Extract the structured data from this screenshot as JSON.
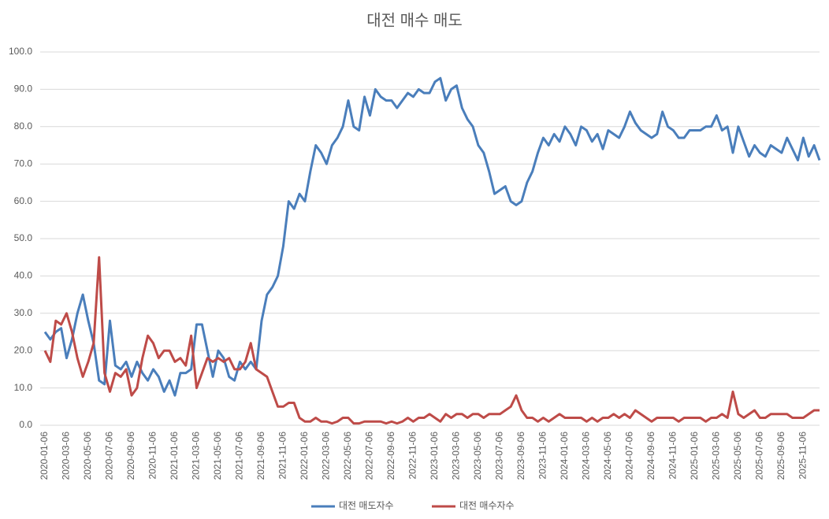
{
  "chart_data": {
    "type": "line",
    "title": "대전 매수 매도",
    "categories": [
      "2020-01-06",
      null,
      null,
      null,
      "2020-03-06",
      null,
      null,
      null,
      "2020-05-06",
      null,
      null,
      null,
      "2020-07-06",
      null,
      null,
      null,
      "2020-09-06",
      null,
      null,
      null,
      "2020-11-06",
      null,
      null,
      null,
      "2021-01-06",
      null,
      null,
      null,
      "2021-03-06",
      null,
      null,
      null,
      "2021-05-06",
      null,
      null,
      null,
      "2021-07-06",
      null,
      null,
      null,
      "2021-09-06",
      null,
      null,
      null,
      "2021-11-06",
      null,
      null,
      null,
      "2022-01-06",
      null,
      null,
      null,
      "2022-03-06",
      null,
      null,
      null,
      "2022-05-06",
      null,
      null,
      null,
      "2022-07-06",
      null,
      null,
      null,
      "2022-09-06",
      null,
      null,
      null,
      "2022-11-06",
      null,
      null,
      null,
      "2023-01-06",
      null,
      null,
      null,
      "2023-03-06",
      null,
      null,
      null,
      "2023-05-06",
      null,
      null,
      null,
      "2023-07-06",
      null,
      null,
      null,
      "2023-09-06",
      null,
      null,
      null,
      "2023-11-06",
      null,
      null,
      null,
      "2024-01-06",
      null,
      null,
      null,
      "2024-03-06",
      null,
      null,
      null,
      "2024-05-06",
      null,
      null,
      null,
      "2024-07-06",
      null,
      null,
      null,
      "2024-09-06",
      null,
      null,
      null,
      "2024-11-06",
      null,
      null,
      null,
      "2025-01-06",
      null,
      null,
      null,
      "2025-03-06",
      null,
      null,
      null,
      "2025-05-06",
      null,
      null,
      null,
      "2025-07-06",
      null,
      null,
      null,
      "2025-09-06",
      null,
      null,
      null,
      "2025-11-06",
      null,
      null,
      null
    ],
    "series": [
      {
        "name": "대전 매도자수",
        "color": "#4a7ebb",
        "values": [
          25,
          23,
          25,
          26,
          18,
          23,
          30,
          35,
          28,
          22,
          12,
          11,
          28,
          16,
          15,
          17,
          13,
          17,
          14,
          12,
          15,
          13,
          9,
          12,
          8,
          14,
          14,
          15,
          27,
          27,
          20,
          13,
          20,
          18,
          13,
          12,
          17,
          15,
          17,
          15,
          28,
          35,
          37,
          40,
          48,
          60,
          58,
          62,
          60,
          68,
          75,
          73,
          70,
          75,
          77,
          80,
          87,
          80,
          79,
          88,
          83,
          90,
          88,
          87,
          87,
          85,
          87,
          89,
          88,
          90,
          89,
          89,
          92,
          93,
          87,
          90,
          91,
          85,
          82,
          80,
          75,
          73,
          68,
          62,
          63,
          64,
          60,
          59,
          60,
          65,
          68,
          73,
          77,
          75,
          78,
          76,
          80,
          78,
          75,
          80,
          79,
          76,
          78,
          74,
          79,
          78,
          77,
          80,
          84,
          81,
          79,
          78,
          77,
          78,
          84,
          80,
          79,
          77,
          77,
          79,
          79,
          79,
          80,
          80,
          83,
          79,
          80,
          73,
          80,
          76,
          72,
          75,
          73,
          72,
          75,
          74,
          73,
          77,
          74,
          71,
          77,
          72,
          75,
          71
        ]
      },
      {
        "name": "대전 매수자수",
        "color": "#be4b48",
        "values": [
          20,
          17,
          28,
          27,
          30,
          25,
          18,
          13,
          17,
          22,
          45,
          14,
          9,
          14,
          13,
          15,
          8,
          10,
          18,
          24,
          22,
          18,
          20,
          20,
          17,
          18,
          16,
          24,
          10,
          14,
          18,
          17,
          18,
          17,
          18,
          15,
          15,
          17,
          22,
          15,
          14,
          13,
          9,
          5,
          5,
          6,
          6,
          2,
          1,
          1,
          2,
          1,
          1,
          0.5,
          1,
          2,
          2,
          0.5,
          0.5,
          1,
          1,
          1,
          1,
          0.5,
          1,
          0.5,
          1,
          2,
          1,
          2,
          2,
          3,
          2,
          1,
          3,
          2,
          3,
          3,
          2,
          3,
          3,
          2,
          3,
          3,
          3,
          4,
          5,
          8,
          4,
          2,
          2,
          1,
          2,
          1,
          2,
          3,
          2,
          2,
          2,
          2,
          1,
          2,
          1,
          2,
          2,
          3,
          2,
          3,
          2,
          4,
          3,
          2,
          1,
          2,
          2,
          2,
          2,
          1,
          2,
          2,
          2,
          2,
          1,
          2,
          2,
          3,
          2,
          9,
          3,
          2,
          3,
          4,
          2,
          2,
          3,
          3,
          3,
          3,
          2,
          2,
          2,
          3,
          4,
          4
        ]
      }
    ],
    "ylim": [
      0,
      100
    ],
    "yticks": [
      {
        "value": 0,
        "label": "0.0"
      },
      {
        "value": 10,
        "label": "10.0"
      },
      {
        "value": 20,
        "label": "20.0"
      },
      {
        "value": 30,
        "label": "30.0"
      },
      {
        "value": 40,
        "label": "40.0"
      },
      {
        "value": 50,
        "label": "50.0"
      },
      {
        "value": 60,
        "label": "60.0"
      },
      {
        "value": 70,
        "label": "70.0"
      },
      {
        "value": 80,
        "label": "80.0"
      },
      {
        "value": 90,
        "label": "90.0"
      },
      {
        "value": 100,
        "label": "100.0"
      }
    ],
    "grid": true,
    "legend": "bottom"
  }
}
